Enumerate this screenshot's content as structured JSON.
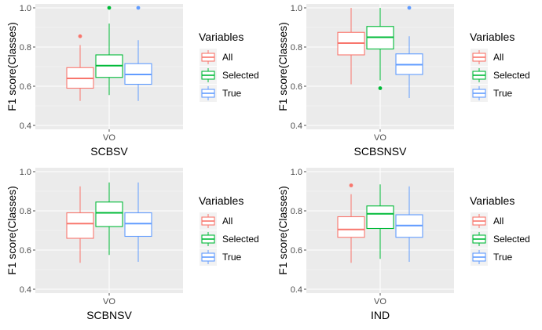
{
  "chart_data": [
    {
      "type": "box",
      "xlabel": "SCBSV",
      "ylabel": "F1 score(Classes)",
      "categories": [
        "VO"
      ],
      "ylim": [
        0.38,
        1.02
      ],
      "yticks": [
        0.4,
        0.6,
        0.8,
        1.0
      ],
      "ytick_labels": [
        "0.4",
        "0.6",
        "0.8",
        "1.0"
      ],
      "grid": true,
      "legend": {
        "title": "Variables",
        "placement": "right",
        "entries": [
          "All",
          "Selected",
          "True"
        ]
      },
      "series": [
        {
          "name": "All",
          "color": "#F8766D",
          "min": 0.525,
          "q1": 0.59,
          "median": 0.64,
          "q3": 0.695,
          "max": 0.81,
          "outliers": [
            0.855
          ]
        },
        {
          "name": "Selected",
          "color": "#00BA38",
          "min": 0.555,
          "q1": 0.645,
          "median": 0.705,
          "q3": 0.76,
          "max": 0.92,
          "outliers": [
            1.0
          ]
        },
        {
          "name": "True",
          "color": "#619CFF",
          "min": 0.525,
          "q1": 0.61,
          "median": 0.66,
          "q3": 0.715,
          "max": 0.835,
          "outliers": [
            1.0
          ]
        }
      ]
    },
    {
      "type": "box",
      "xlabel": "SCBSNSV",
      "ylabel": "F1 score(Classes)",
      "categories": [
        "VO"
      ],
      "ylim": [
        0.38,
        1.02
      ],
      "yticks": [
        0.4,
        0.6,
        0.8,
        1.0
      ],
      "ytick_labels": [
        "0.4",
        "0.6",
        "0.8",
        "1.0"
      ],
      "grid": true,
      "legend": {
        "title": "Variables",
        "placement": "right",
        "entries": [
          "All",
          "Selected",
          "True"
        ]
      },
      "series": [
        {
          "name": "All",
          "color": "#F8766D",
          "min": 0.61,
          "q1": 0.76,
          "median": 0.82,
          "q3": 0.875,
          "max": 1.0,
          "outliers": []
        },
        {
          "name": "Selected",
          "color": "#00BA38",
          "min": 0.63,
          "q1": 0.79,
          "median": 0.85,
          "q3": 0.905,
          "max": 1.0,
          "outliers": [
            0.59
          ]
        },
        {
          "name": "True",
          "color": "#619CFF",
          "min": 0.54,
          "q1": 0.66,
          "median": 0.71,
          "q3": 0.765,
          "max": 0.855,
          "outliers": [
            1.0
          ]
        }
      ]
    },
    {
      "type": "box",
      "xlabel": "SCBNSV",
      "ylabel": "F1 score(Classes)",
      "categories": [
        "VO"
      ],
      "ylim": [
        0.38,
        1.02
      ],
      "yticks": [
        0.4,
        0.6,
        0.8,
        1.0
      ],
      "ytick_labels": [
        "0.4",
        "0.6",
        "0.8",
        "1.0"
      ],
      "grid": true,
      "legend": {
        "title": "Variables",
        "placement": "right",
        "entries": [
          "All",
          "Selected",
          "True"
        ]
      },
      "series": [
        {
          "name": "All",
          "color": "#F8766D",
          "min": 0.535,
          "q1": 0.66,
          "median": 0.735,
          "q3": 0.79,
          "max": 0.925,
          "outliers": []
        },
        {
          "name": "Selected",
          "color": "#00BA38",
          "min": 0.575,
          "q1": 0.72,
          "median": 0.79,
          "q3": 0.845,
          "max": 0.945,
          "outliers": []
        },
        {
          "name": "True",
          "color": "#619CFF",
          "min": 0.54,
          "q1": 0.67,
          "median": 0.735,
          "q3": 0.79,
          "max": 0.945,
          "outliers": []
        }
      ]
    },
    {
      "type": "box",
      "xlabel": "IND",
      "ylabel": "F1 score(Classes)",
      "categories": [
        "VO"
      ],
      "ylim": [
        0.38,
        1.02
      ],
      "yticks": [
        0.4,
        0.6,
        0.8,
        1.0
      ],
      "ytick_labels": [
        "0.4",
        "0.6",
        "0.8",
        "1.0"
      ],
      "grid": true,
      "legend": {
        "title": "Variables",
        "placement": "right",
        "entries": [
          "All",
          "Selected",
          "True"
        ]
      },
      "series": [
        {
          "name": "All",
          "color": "#F8766D",
          "min": 0.535,
          "q1": 0.665,
          "median": 0.705,
          "q3": 0.77,
          "max": 0.885,
          "outliers": [
            0.93
          ]
        },
        {
          "name": "Selected",
          "color": "#00BA38",
          "min": 0.555,
          "q1": 0.71,
          "median": 0.785,
          "q3": 0.825,
          "max": 0.935,
          "outliers": []
        },
        {
          "name": "True",
          "color": "#619CFF",
          "min": 0.54,
          "q1": 0.665,
          "median": 0.725,
          "q3": 0.78,
          "max": 0.925,
          "outliers": []
        }
      ]
    }
  ]
}
